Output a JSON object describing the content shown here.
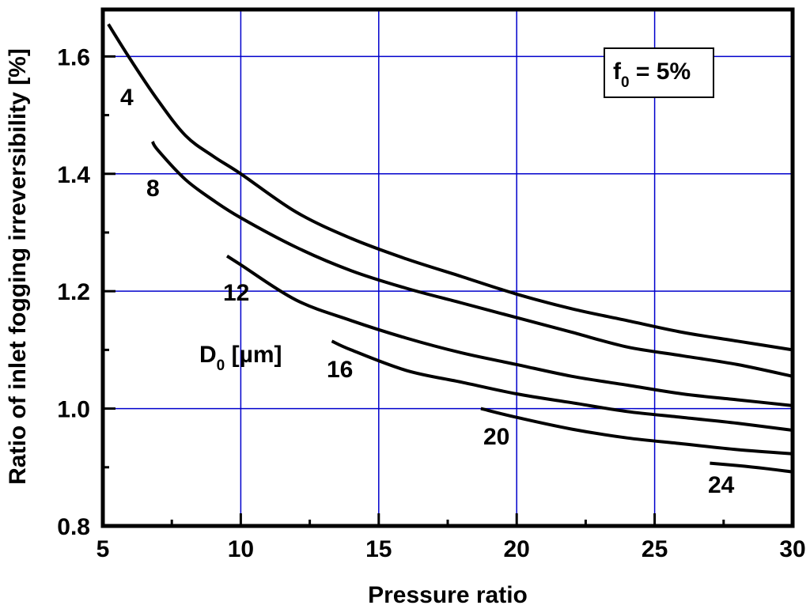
{
  "chart_data": {
    "type": "line",
    "title": "",
    "xlabel": "Pressure ratio",
    "ylabel": "Ratio of inlet fogging irreversibility [%]",
    "xlim": [
      5,
      30
    ],
    "ylim": [
      0.8,
      1.68
    ],
    "xticks": [
      "5",
      "10",
      "15",
      "20",
      "25",
      "30"
    ],
    "yticks": [
      "0.8",
      "1.0",
      "1.2",
      "1.4",
      "1.6"
    ],
    "grid": true,
    "grid_color": "#0000cc",
    "line_color": "#000000",
    "legend_title_main": "D",
    "legend_title_sub": "0",
    "legend_title_rest": " [µm]",
    "annotation_main": "f",
    "annotation_sub": "0",
    "annotation_rest": " = 5%",
    "series": [
      {
        "name": "4",
        "x": [
          5.2,
          6,
          7,
          8,
          9,
          10,
          12,
          14,
          16,
          18,
          20,
          22,
          24,
          26,
          28,
          30
        ],
        "y": [
          1.655,
          1.595,
          1.525,
          1.465,
          1.43,
          1.4,
          1.335,
          1.29,
          1.255,
          1.225,
          1.195,
          1.17,
          1.15,
          1.13,
          1.115,
          1.1
        ]
      },
      {
        "name": "8",
        "x": [
          6.8,
          7,
          8,
          9,
          10,
          12,
          14,
          16,
          18,
          20,
          22,
          24,
          26,
          28,
          30
        ],
        "y": [
          1.455,
          1.44,
          1.39,
          1.355,
          1.325,
          1.275,
          1.235,
          1.205,
          1.18,
          1.155,
          1.13,
          1.105,
          1.09,
          1.075,
          1.055
        ]
      },
      {
        "name": "12",
        "x": [
          9.5,
          10,
          12,
          14,
          16,
          18,
          20,
          22,
          24,
          26,
          28,
          30
        ],
        "y": [
          1.26,
          1.245,
          1.185,
          1.15,
          1.12,
          1.095,
          1.075,
          1.055,
          1.04,
          1.025,
          1.015,
          1.005
        ]
      },
      {
        "name": "16",
        "x": [
          13.3,
          14,
          16,
          18,
          20,
          22,
          24,
          26,
          28,
          30
        ],
        "y": [
          1.115,
          1.1,
          1.065,
          1.045,
          1.025,
          1.01,
          0.995,
          0.985,
          0.975,
          0.963
        ]
      },
      {
        "name": "20",
        "x": [
          18.7,
          20,
          22,
          24,
          26,
          28,
          30
        ],
        "y": [
          1.0,
          0.985,
          0.965,
          0.95,
          0.94,
          0.93,
          0.923
        ]
      },
      {
        "name": "24",
        "x": [
          27,
          28,
          29,
          30
        ],
        "y": [
          0.907,
          0.903,
          0.898,
          0.892
        ]
      }
    ]
  }
}
